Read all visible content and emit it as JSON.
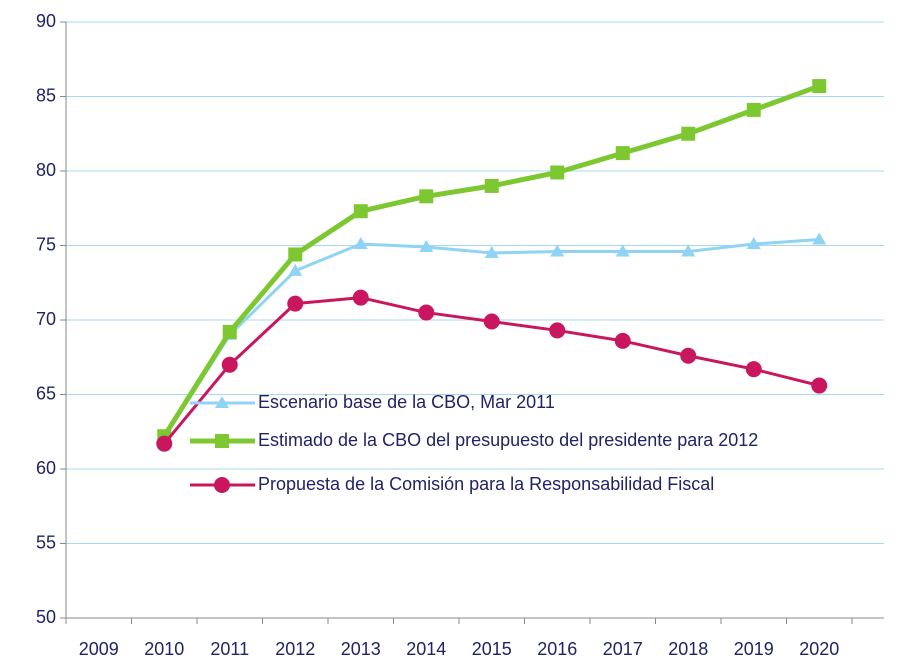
{
  "chart_data": {
    "type": "line",
    "categories": [
      "2009",
      "2010",
      "2011",
      "2012",
      "2013",
      "2014",
      "2015",
      "2016",
      "2017",
      "2018",
      "2019",
      "2020"
    ],
    "series": [
      {
        "name": "Escenario base de la CBO, Mar 2011",
        "color": "#8fd3f5",
        "marker": "triangle",
        "values": [
          null,
          62.1,
          69.0,
          73.3,
          75.1,
          74.9,
          74.5,
          74.6,
          74.6,
          74.6,
          75.1,
          75.4
        ]
      },
      {
        "name": "Estimado de la CBO del presupuesto del presidente para 2012",
        "color": "#7dc831",
        "marker": "square",
        "values": [
          null,
          62.2,
          69.2,
          74.4,
          77.3,
          78.3,
          79.0,
          79.9,
          81.2,
          82.5,
          84.1,
          85.7
        ]
      },
      {
        "name": "Propuesta de la Comisión para la Responsabilidad Fiscal",
        "color": "#c8175e",
        "marker": "circle",
        "values": [
          null,
          61.7,
          67.0,
          71.1,
          71.5,
          70.5,
          69.9,
          69.3,
          68.6,
          67.6,
          66.7,
          65.6
        ]
      }
    ],
    "ylim": [
      50,
      90
    ],
    "yticks": [
      50,
      55,
      60,
      65,
      70,
      75,
      80,
      85,
      90
    ],
    "grid": true
  }
}
